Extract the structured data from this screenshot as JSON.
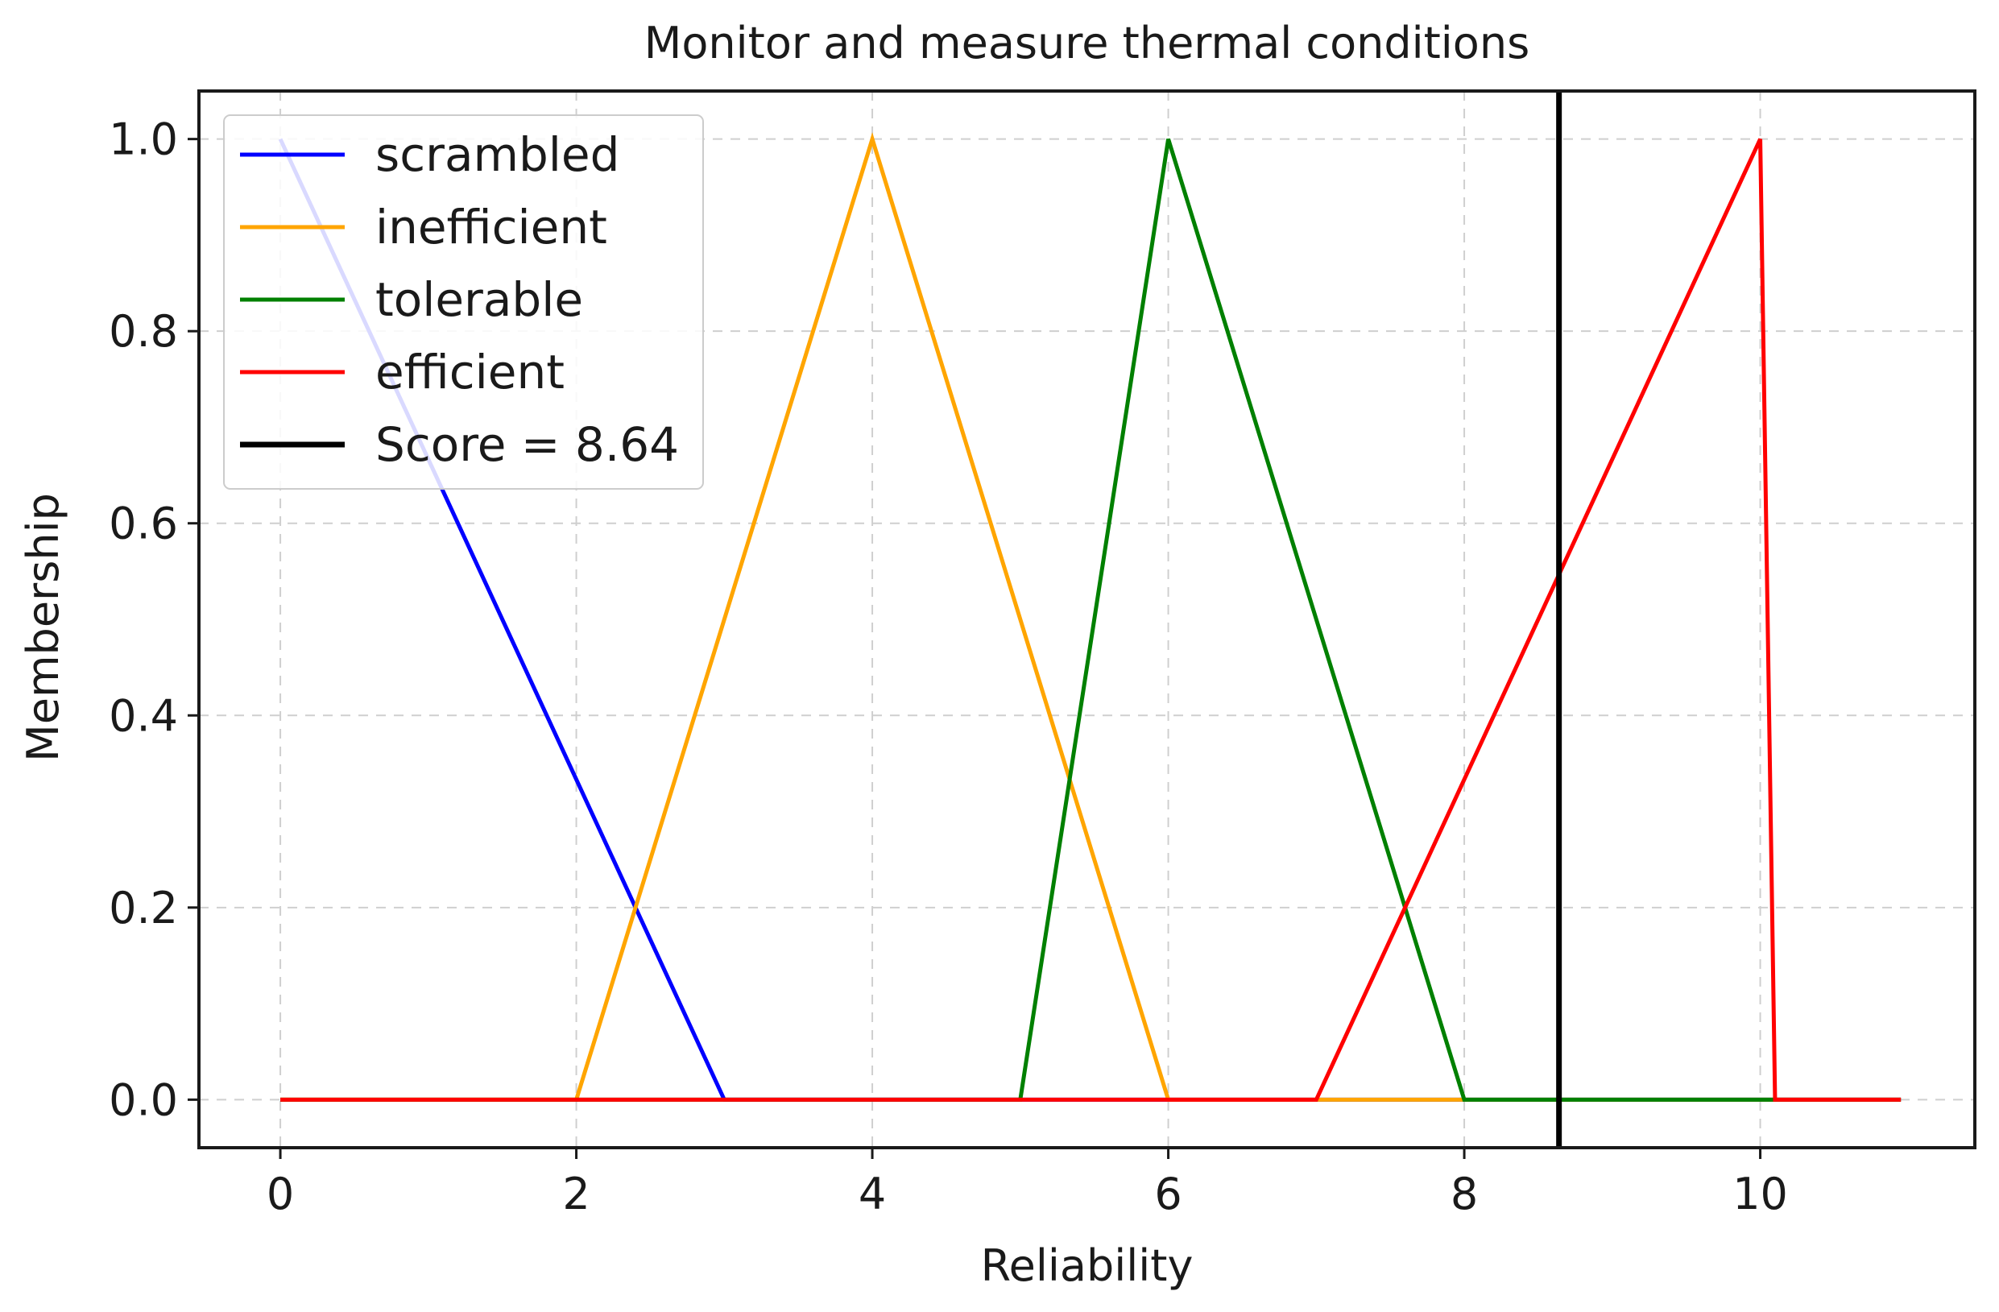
{
  "chart_data": {
    "type": "line",
    "title": "Monitor and measure thermal conditions",
    "xlabel": "Reliability",
    "ylabel": "Membership",
    "xlim": [
      -0.55,
      11.45
    ],
    "ylim": [
      -0.05,
      1.05
    ],
    "xticks": [
      0,
      2,
      4,
      6,
      8,
      10
    ],
    "xtick_labels": [
      "0",
      "2",
      "4",
      "6",
      "8",
      "10"
    ],
    "yticks": [
      0.0,
      0.2,
      0.4,
      0.6,
      0.8,
      1.0
    ],
    "ytick_labels": [
      "0.0",
      "0.2",
      "0.4",
      "0.6",
      "0.8",
      "1.0"
    ],
    "grid": true,
    "legend_position": "top-left",
    "series": [
      {
        "name": "scrambled",
        "color": "#0000ff",
        "x": [
          0,
          3,
          10.95
        ],
        "y": [
          1,
          0,
          0
        ]
      },
      {
        "name": "inefficient",
        "color": "#ffa500",
        "x": [
          0,
          2,
          4,
          6,
          10.95
        ],
        "y": [
          0,
          0,
          1,
          0,
          0
        ]
      },
      {
        "name": "tolerable",
        "color": "#008000",
        "x": [
          0,
          5,
          6,
          8,
          10.95
        ],
        "y": [
          0,
          0,
          1,
          0,
          0
        ]
      },
      {
        "name": "efficient",
        "color": "#ff0000",
        "x": [
          0,
          7,
          10,
          10.1,
          10.95
        ],
        "y": [
          0,
          0,
          1,
          0,
          0
        ]
      }
    ],
    "vlines": [
      {
        "name": "Score = 8.64",
        "x": 8.64,
        "color": "#000000"
      }
    ]
  }
}
